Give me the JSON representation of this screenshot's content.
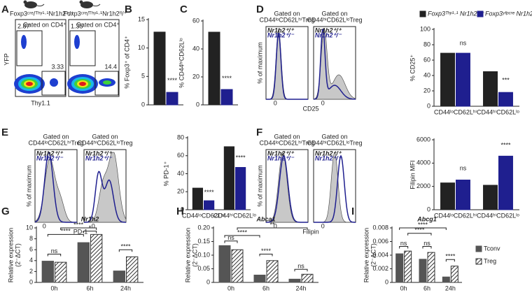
{
  "panel_labels": [
    "A",
    "B",
    "C",
    "D",
    "E",
    "F",
    "G",
    "H",
    "I"
  ],
  "flow": {
    "A": {
      "titles": [
        "Foxp3ᶜʳᵉ/ᵀʰʸ¹·¹Nr1h2⁺/⁺",
        "Foxp3ᶜʳᵉ/ᵀʰʸ¹·¹Nr1h2ᶠˡ/⁺"
      ],
      "gate": "Gated on CD4⁺",
      "left": [
        2.87,
        3.33
      ],
      "right": [
        1.35,
        14.4
      ],
      "ylabel": "YFP",
      "xlabel": "Thy1.1"
    },
    "D": {
      "gates": [
        [
          "Gated on",
          "CD44ˡᵒCD62LʰⁱTreg"
        ],
        [
          "Gated on",
          "CD44ʰⁱCD62LˡᵒTreg"
        ]
      ],
      "legend": [
        "Nr1h2⁺/⁺",
        "Nr1h2⁺/⁻"
      ],
      "xlabel": "CD25",
      "ylabel": "% of maximum",
      "tick": 0
    },
    "E": {
      "gates": [
        [
          "Gated on",
          "CD44ˡᵒCD62LʰⁱTreg"
        ],
        [
          "Gated on",
          "CD44ʰⁱCD62LˡᵒTreg"
        ]
      ],
      "legend": [
        "Nr1h2⁺/⁺",
        "Nr1h2⁺/⁻"
      ],
      "xlabel": "PD-1",
      "ylabel": "% of maximum",
      "tick": 0
    },
    "F": {
      "gates": [
        [
          "Gated on",
          "CD44ˡᵒCD62LʰⁱTreg"
        ],
        [
          "Gated on",
          "CD44ʰⁱCD62LˡᵒTreg"
        ]
      ],
      "legend": [
        "Nr1h2⁺/⁺",
        "Nr1h2⁺/⁻"
      ],
      "xlabel": "Filipin",
      "ylabel": "% of maximum",
      "tick": 0
    }
  },
  "chart_data": [
    {
      "type": "bar",
      "ylabel": "% Foxp3⁺ of CD4⁺",
      "ylim": [
        0,
        15
      ],
      "yticks": [
        0,
        5,
        10,
        15
      ],
      "series": [
        {
          "color": "#222222",
          "values": [
            12.8
          ]
        },
        {
          "color": "#1f1f8f",
          "values": [
            2.2
          ]
        }
      ],
      "sig": [
        "****"
      ]
    },
    {
      "type": "bar",
      "ylabel": "% CD44ʰⁱCD62Lˡᵒ",
      "ylim": [
        0,
        60
      ],
      "yticks": [
        0,
        20,
        40,
        60
      ],
      "series": [
        {
          "color": "#222222",
          "values": [
            52
          ]
        },
        {
          "color": "#1f1f8f",
          "values": [
            11
          ]
        }
      ],
      "sig": [
        "****"
      ]
    },
    {
      "type": "bar",
      "ylabel": "% CD25⁺",
      "ylim": [
        0,
        100
      ],
      "yticks": [
        0,
        20,
        40,
        60,
        80,
        100
      ],
      "categories": [
        "CD44ˡᵒCD62Lʰⁱ",
        "CD44ʰⁱCD62Lˡᵒ"
      ],
      "series": [
        {
          "name": "Foxp3ᵀʰʸ¹·¹ Nr1h2ᶠˡ/⁺",
          "color": "#222222",
          "values": [
            69,
            45
          ]
        },
        {
          "name": "Foxp3ʸᶠᵖᶜʳᵉ Nr1h2ᶠˡ/⁺",
          "color": "#1f1f8f",
          "values": [
            69,
            18
          ]
        }
      ],
      "sig": [
        "ns",
        "***"
      ]
    },
    {
      "type": "bar",
      "ylabel": "% PD-1⁺",
      "ylim": [
        0,
        80
      ],
      "yticks": [
        0,
        20,
        40,
        60,
        80
      ],
      "categories": [
        "CD44ˡᵒCD62Lʰⁱ",
        "CD44ʰⁱCD62Lˡᵒ"
      ],
      "series": [
        {
          "color": "#222222",
          "values": [
            24,
            70
          ]
        },
        {
          "color": "#1f1f8f",
          "values": [
            10,
            47
          ]
        }
      ],
      "sig": [
        "****",
        "****"
      ]
    },
    {
      "type": "bar",
      "ylabel": "Filipin MFI",
      "ylim": [
        0,
        6000
      ],
      "yticks": [
        0,
        2000,
        4000,
        6000
      ],
      "categories": [
        "CD44ˡᵒCD62Lʰⁱ",
        "CD44ʰⁱCD62Lˡᵒ"
      ],
      "series": [
        {
          "color": "#222222",
          "values": [
            2300,
            2100
          ]
        },
        {
          "color": "#1f1f8f",
          "values": [
            2550,
            4600
          ]
        }
      ],
      "sig": [
        "ns",
        "****"
      ]
    },
    {
      "type": "bar",
      "title": "Nr1h2",
      "ylabel": "Relative expression",
      "ylabel2": "(2⁻ΔCT)",
      "ylim": [
        0,
        10
      ],
      "yticks": [
        0,
        2,
        4,
        6,
        8,
        10
      ],
      "categories": [
        "0h",
        "6h",
        "24h"
      ],
      "series": [
        {
          "color": "#555555",
          "values": [
            3.9,
            7.3,
            2.1
          ]
        },
        {
          "color": "#ffffff",
          "hatch": true,
          "values": [
            3.7,
            8.8,
            4.7
          ]
        }
      ],
      "sig": [
        "ns",
        "****",
        "****",
        "*",
        "****"
      ]
    },
    {
      "type": "bar",
      "title": "Abca1",
      "ylabel": "Relative expression",
      "ylabel2": "(2⁻ΔCT)",
      "ylim": [
        0,
        0.2
      ],
      "yticks": [
        0,
        0.05,
        {
          "value": 0.1,
          "label": "0.10"
        },
        0.15,
        {
          "value": 0.2,
          "label": "0.20"
        }
      ],
      "categories": [
        "0h",
        "6h",
        "24h"
      ],
      "series": [
        {
          "color": "#555555",
          "values": [
            0.135,
            0.027,
            0.012
          ]
        },
        {
          "color": "#ffffff",
          "hatch": true,
          "values": [
            0.12,
            0.08,
            0.03
          ]
        }
      ],
      "sig": [
        "ns",
        "****",
        "**",
        "****",
        "ns"
      ]
    },
    {
      "type": "bar",
      "title": "Abcg1",
      "ylabel": "Relative expression",
      "ylabel2": "(2⁻ΔCT)",
      "ylim": [
        0,
        0.008
      ],
      "yticks": [
        0,
        0.002,
        0.004,
        0.006,
        0.008
      ],
      "categories": [
        "0h",
        "6h",
        "24h"
      ],
      "series": [
        {
          "name": "Tconv",
          "color": "#555555",
          "values": [
            0.0042,
            0.0034,
            0.0008
          ]
        },
        {
          "name": "Treg",
          "color": "#ffffff",
          "hatch": true,
          "values": [
            0.0046,
            0.0044,
            0.0024
          ]
        }
      ],
      "sig": [
        "ns",
        "****",
        "****",
        "ns",
        "****"
      ]
    }
  ]
}
